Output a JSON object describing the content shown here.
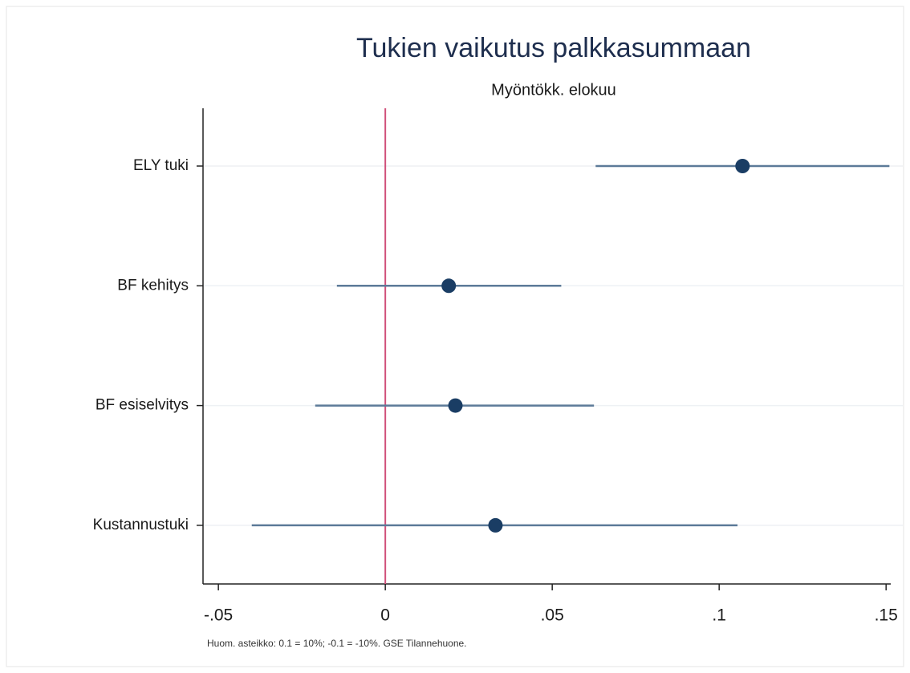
{
  "chart_data": {
    "type": "coefplot",
    "title": "Tukien vaikutus palkkasummaan",
    "subtitle": "Myöntökk. elokuu",
    "note": "Huom. asteikko: 0.1 = 10%; -0.1 = -10%. GSE Tilannehuone.",
    "categories": [
      "ELY tuki",
      "BF kehitys",
      "BF esiselvitys",
      "Kustannustuki"
    ],
    "values": [
      0.107,
      0.019,
      0.021,
      0.033
    ],
    "lower": [
      0.063,
      -0.0145,
      -0.021,
      -0.04
    ],
    "upper": [
      0.151,
      0.0527,
      0.0625,
      0.1055
    ],
    "color": "#1a3d64",
    "ci_color": "#5c7a98",
    "xline": 0,
    "xline_color": "#d0507a",
    "xlim": [
      -0.0546,
      0.155
    ],
    "xticks": [
      {
        "value": -0.05,
        "label": "-.05"
      },
      0,
      {
        "value": 0.05,
        "label": ".05"
      },
      {
        "value": 0.1,
        "label": ".1"
      },
      {
        "value": 0.15,
        "label": ".15"
      }
    ],
    "grid": true
  }
}
